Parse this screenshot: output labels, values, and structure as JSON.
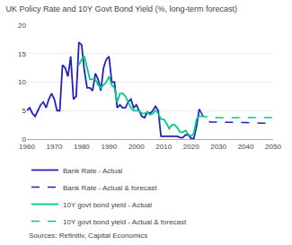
{
  "chart_data": {
    "type": "line",
    "title": "UK Policy Rate and 10Y Govt Bond Yield (%, long-term forecast)",
    "annotations": [
      "Sources: Refinitiv, Capital Economics"
    ],
    "xlim": [
      1960,
      2050
    ],
    "xticks": [
      1960,
      1970,
      1980,
      1990,
      2000,
      2010,
      2020,
      2030,
      2040,
      2050
    ],
    "ylim": [
      0,
      20
    ],
    "yticks": [
      0,
      5,
      10,
      15,
      20
    ],
    "grid": true,
    "legend": "bottom",
    "series": [
      {
        "name": "Bank Rate - Actual",
        "color": "#2222bb",
        "line_style": "solid",
        "x": [
          1960,
          1961,
          1962,
          1963,
          1964,
          1965,
          1966,
          1967,
          1968,
          1969,
          1970,
          1971,
          1972,
          1973,
          1974,
          1975,
          1976,
          1977,
          1978,
          1979,
          1980,
          1981,
          1982,
          1983,
          1984,
          1985,
          1986,
          1987,
          1988,
          1989,
          1990,
          1991,
          1992,
          1993,
          1994,
          1995,
          1996,
          1997,
          1998,
          1999,
          2000,
          2001,
          2002,
          2003,
          2004,
          2005,
          2006,
          2007,
          2008,
          2009,
          2010,
          2011,
          2012,
          2013,
          2014,
          2015,
          2016,
          2017,
          2018,
          2019,
          2020,
          2021,
          2022,
          2023
        ],
        "values": [
          5.0,
          5.5,
          4.5,
          4.0,
          5.0,
          6.0,
          6.5,
          5.5,
          7.0,
          8.0,
          7.0,
          5.0,
          5.0,
          13.0,
          12.5,
          11.0,
          14.5,
          7.0,
          7.5,
          17.0,
          16.5,
          12.0,
          9.0,
          9.0,
          8.5,
          11.5,
          10.5,
          8.5,
          12.5,
          14.0,
          14.5,
          10.0,
          10.0,
          5.5,
          6.0,
          5.5,
          5.5,
          6.5,
          7.0,
          5.5,
          6.0,
          5.0,
          4.0,
          3.75,
          4.75,
          4.5,
          5.0,
          5.75,
          5.0,
          0.5,
          0.5,
          0.5,
          0.5,
          0.5,
          0.5,
          0.5,
          0.25,
          0.25,
          0.75,
          0.75,
          0.1,
          0.1,
          2.25,
          5.25
        ]
      },
      {
        "name": "Bank Rate - Actual & forecast",
        "color": "#2222bb",
        "line_style": "dashed",
        "x": [
          2023,
          2025,
          2027,
          2030,
          2035,
          2040,
          2045,
          2050
        ],
        "values": [
          5.25,
          3.5,
          3.0,
          3.0,
          3.0,
          2.9,
          2.8,
          2.75
        ]
      },
      {
        "name": "10Y govt bond yield - Actual",
        "color": "#00cc88",
        "line_style": "solid",
        "x": [
          1979,
          1980,
          1981,
          1982,
          1983,
          1984,
          1985,
          1986,
          1987,
          1988,
          1989,
          1990,
          1991,
          1992,
          1993,
          1994,
          1995,
          1996,
          1997,
          1998,
          1999,
          2000,
          2001,
          2002,
          2003,
          2004,
          2005,
          2006,
          2007,
          2008,
          2009,
          2010,
          2011,
          2012,
          2013,
          2014,
          2015,
          2016,
          2017,
          2018,
          2019,
          2020,
          2021,
          2022,
          2023
        ],
        "values": [
          13.0,
          14.0,
          14.5,
          12.5,
          10.5,
          10.5,
          10.5,
          9.5,
          9.0,
          9.5,
          10.0,
          11.0,
          9.5,
          9.0,
          6.5,
          8.0,
          8.0,
          7.5,
          6.5,
          5.5,
          5.0,
          5.0,
          5.0,
          4.5,
          4.5,
          4.75,
          4.25,
          4.5,
          5.0,
          4.5,
          3.5,
          3.5,
          2.8,
          1.8,
          2.5,
          2.5,
          2.0,
          1.2,
          1.2,
          1.5,
          0.8,
          0.5,
          1.0,
          3.5,
          4.0
        ]
      },
      {
        "name": "10Y govt bond yield - Actual & forecast",
        "color": "#00cc88",
        "line_style": "dashed",
        "x": [
          2023,
          2025,
          2027,
          2030,
          2035,
          2040,
          2045,
          2050
        ],
        "values": [
          4.0,
          3.9,
          3.8,
          3.75,
          3.75,
          3.8,
          3.8,
          3.75
        ]
      }
    ]
  }
}
